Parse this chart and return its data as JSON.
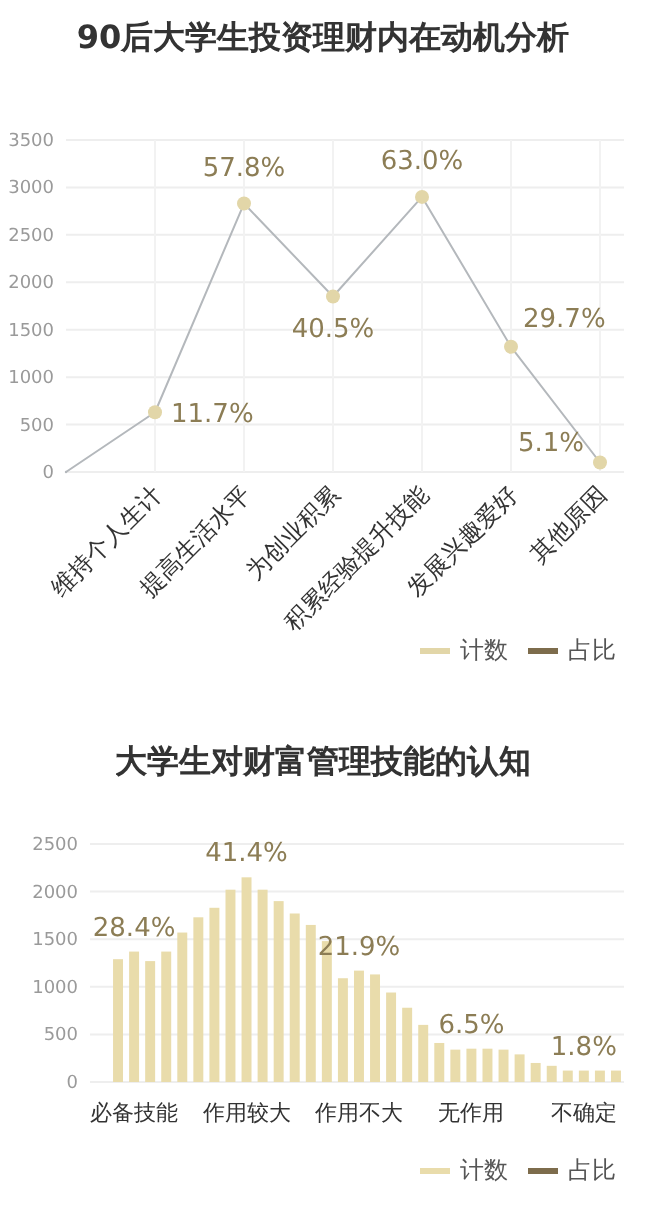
{
  "chart_data": [
    {
      "type": "line",
      "title": "90后大学生投资理财内在动机分析",
      "categories": [
        null,
        "维持个人生计",
        "提高生活水平",
        "为创业积累",
        "积累经验提升技能",
        "发展兴趣爱好",
        "其他原因"
      ],
      "series": [
        {
          "name": "计数",
          "color": "#e2d6a8",
          "values": [
            0,
            630,
            2830,
            1850,
            2900,
            1320,
            100
          ]
        },
        {
          "name": "占比",
          "color": "#7d6c4c",
          "values": [
            null,
            null,
            null,
            null,
            null,
            null,
            null
          ]
        }
      ],
      "annotations": [
        {
          "text": "11.7%",
          "x": "维持个人生计",
          "y": 630
        },
        {
          "text": "57.8%",
          "x": "提高生活水平",
          "y": 2830
        },
        {
          "text": "40.5%",
          "x": "为创业积累",
          "y": 1850
        },
        {
          "text": "63.0%",
          "x": "积累经验提升技能",
          "y": 2900
        },
        {
          "text": "29.7%",
          "x": "发展兴趣爱好",
          "y": 1320
        },
        {
          "text": "5.1%",
          "x": "其他原因",
          "y": 100
        }
      ],
      "ylim": [
        0,
        3500
      ],
      "yticks": [
        0,
        500,
        1000,
        1500,
        2000,
        2500,
        3000,
        3500
      ],
      "grid": true,
      "marker": "circle",
      "legend": "bottom right"
    },
    {
      "type": "bar",
      "title": "大学生对财富管理技能的认知",
      "categories": [
        null,
        "必备技能",
        null,
        null,
        null,
        null,
        null,
        null,
        "作用较大",
        null,
        null,
        null,
        null,
        null,
        null,
        "作用不大",
        null,
        null,
        null,
        null,
        null,
        null,
        "无作用",
        null,
        null,
        null,
        null,
        null,
        null,
        "不确定",
        null,
        null
      ],
      "series": [
        {
          "name": "计数",
          "color": "#e9dcab",
          "values": [
            1290,
            1370,
            1270,
            1370,
            1570,
            1730,
            1830,
            2020,
            2150,
            2020,
            1900,
            1770,
            1650,
            1480,
            1090,
            1170,
            1130,
            940,
            780,
            600,
            410,
            340,
            350,
            350,
            340,
            290,
            200,
            170,
            120,
            120,
            120,
            120
          ]
        },
        {
          "name": "占比",
          "color": "#7d6c4c",
          "values": [
            null,
            null,
            null,
            null,
            null,
            null,
            null,
            null,
            null,
            null,
            null,
            null,
            null,
            null,
            null,
            null,
            null,
            null,
            null,
            null,
            null,
            null,
            null,
            null,
            null,
            null,
            null,
            null,
            null,
            null,
            null,
            null
          ]
        }
      ],
      "annotations": [
        {
          "text": "28.4%",
          "x": "必备技能",
          "y": 1370
        },
        {
          "text": "41.4%",
          "x": "作用较大",
          "y": 2150
        },
        {
          "text": "21.9%",
          "x": "作用不大",
          "y": 1170
        },
        {
          "text": "6.5%",
          "x": "无作用",
          "y": 350
        },
        {
          "text": "1.8%",
          "x": "不确定",
          "y": 120
        }
      ],
      "ylim": [
        0,
        2500
      ],
      "yticks": [
        0,
        500,
        1000,
        1500,
        2000,
        2500
      ],
      "grid": "y",
      "legend": "bottom right"
    }
  ]
}
